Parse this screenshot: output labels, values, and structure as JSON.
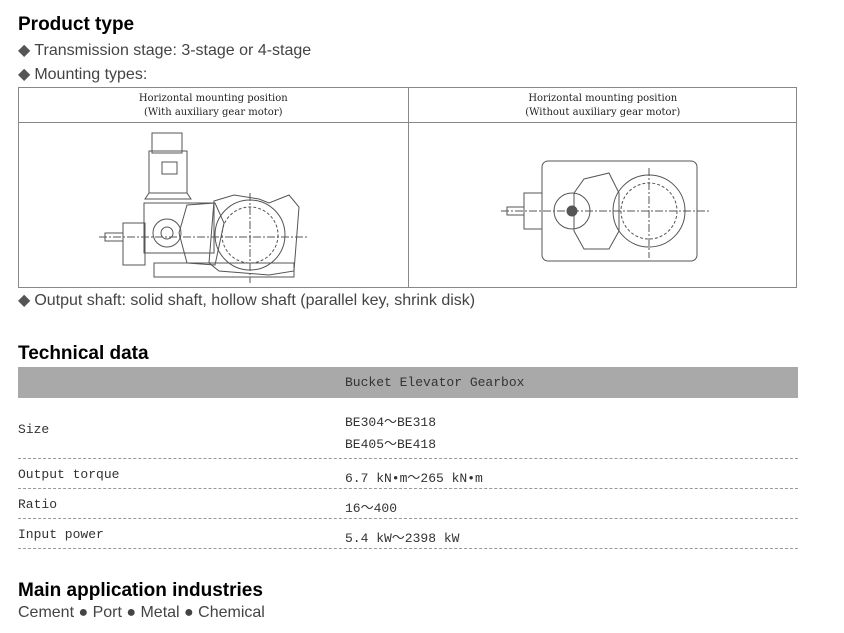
{
  "product_type": {
    "title": "Product type",
    "bullets": [
      "Transmission stage: 3-stage or 4-stage",
      "Mounting types:"
    ],
    "bullet_icon": "diamond-icon",
    "mounting_table": [
      {
        "title": "Horizontal mounting position",
        "subtitle": "(With auxiliary gear motor)"
      },
      {
        "title": "Horizontal mounting position",
        "subtitle": "(Without auxiliary gear motor)"
      }
    ],
    "output_shaft": "Output shaft: solid shaft, hollow shaft (parallel key, shrink disk)"
  },
  "technical": {
    "title": "Technical data",
    "header": "Bucket Elevator Gearbox",
    "rows": [
      {
        "label": "Size",
        "values": [
          "BE304～BE318",
          "BE405～BE418"
        ]
      },
      {
        "label": "Output torque",
        "values": [
          "6.7 kN•m～265 kN•m"
        ]
      },
      {
        "label": "Ratio",
        "values": [
          "16～400"
        ]
      },
      {
        "label": "Input power",
        "values": [
          "5.4 kW～2398 kW"
        ]
      }
    ]
  },
  "industries": {
    "title": "Main application industries",
    "text": "Cement ● Port ● Metal ● Chemical"
  }
}
